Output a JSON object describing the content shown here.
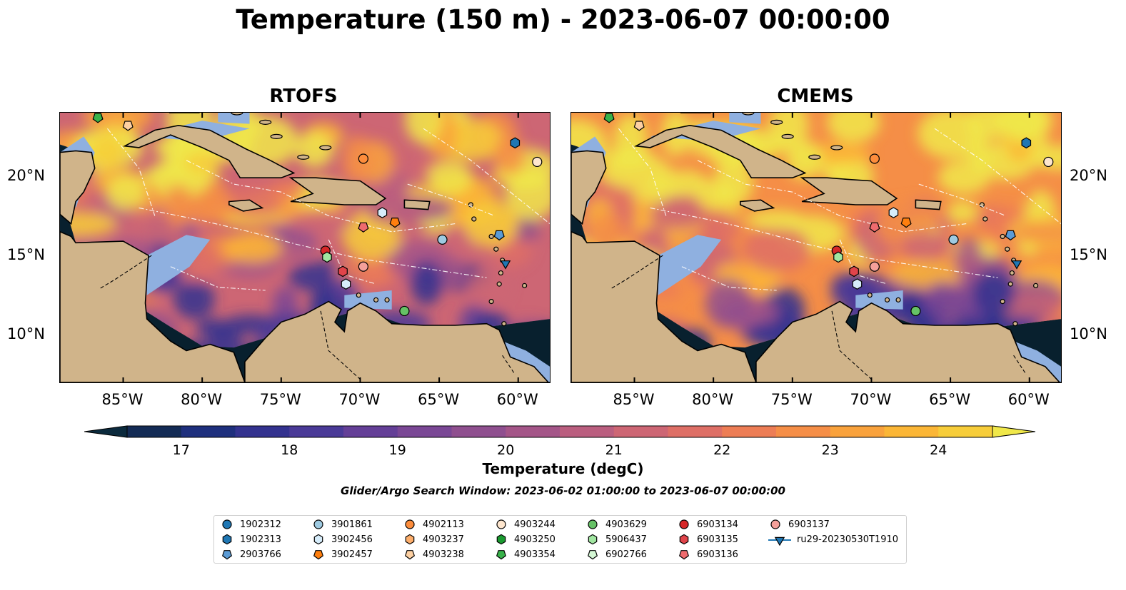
{
  "title": "Temperature (150 m) - 2023-06-07 00:00:00",
  "panels": [
    {
      "name": "RTOFS"
    },
    {
      "name": "CMEMS"
    }
  ],
  "axes": {
    "lon_ticks": [
      "85°W",
      "80°W",
      "75°W",
      "70°W",
      "65°W",
      "60°W"
    ],
    "lat_ticks": [
      "20°N",
      "15°N",
      "10°N"
    ],
    "lon_range": [
      -89,
      -58
    ],
    "lat_range": [
      7,
      24
    ]
  },
  "colorbar": {
    "label": "Temperature (degC)",
    "ticks": [
      "17",
      "18",
      "19",
      "20",
      "21",
      "22",
      "23",
      "24"
    ],
    "range": [
      16.5,
      24.5
    ],
    "colors": [
      "#0b2a3d",
      "#132b55",
      "#1e2f7d",
      "#33328f",
      "#4a3a97",
      "#643f97",
      "#7a4795",
      "#8f4f8f",
      "#a45588",
      "#ba5e7f",
      "#cd6674",
      "#de6f66",
      "#ed7d55",
      "#f58e47",
      "#f9a23c",
      "#fbb636",
      "#f7cd3a",
      "#f0e84a"
    ],
    "land_color": "#d0b48a",
    "shelf_color": "#8fb0e0",
    "deep_color": "#08202e"
  },
  "subtitle": "Glider/Argo Search Window: 2023-06-02 01:00:00 to 2023-06-07 00:00:00",
  "legend": [
    {
      "label": "1902312",
      "marker": "circle",
      "color": "#1f77b4"
    },
    {
      "label": "1902313",
      "marker": "hexagon",
      "color": "#1f77b4"
    },
    {
      "label": "2903766",
      "marker": "pentagon",
      "color": "#5b9bd5"
    },
    {
      "label": "3901861",
      "marker": "circle",
      "color": "#9ecae1"
    },
    {
      "label": "3902456",
      "marker": "hexagon",
      "color": "#d6ecfa"
    },
    {
      "label": "3902457",
      "marker": "pentagon",
      "color": "#ff7f0e"
    },
    {
      "label": "4902113",
      "marker": "circle",
      "color": "#fd8d3c"
    },
    {
      "label": "4903237",
      "marker": "hexagon",
      "color": "#fdae6b"
    },
    {
      "label": "4903238",
      "marker": "pentagon",
      "color": "#fdd0a2"
    },
    {
      "label": "4903244",
      "marker": "circle",
      "color": "#fee6ce"
    },
    {
      "label": "4903250",
      "marker": "hexagon",
      "color": "#1a9a30"
    },
    {
      "label": "4903354",
      "marker": "pentagon",
      "color": "#38b24a"
    },
    {
      "label": "4903629",
      "marker": "circle",
      "color": "#66c266"
    },
    {
      "label": "5906437",
      "marker": "hexagon",
      "color": "#a1e6a1"
    },
    {
      "label": "6902766",
      "marker": "pentagon",
      "color": "#d4f7d4"
    },
    {
      "label": "6903134",
      "marker": "circle",
      "color": "#d62728"
    },
    {
      "label": "6903135",
      "marker": "hexagon",
      "color": "#e0444a"
    },
    {
      "label": "6903136",
      "marker": "pentagon",
      "color": "#ee6b6e"
    },
    {
      "label": "6903137",
      "marker": "circle",
      "color": "#f4a09a"
    },
    {
      "label": "ru29-20230530T1910",
      "marker": "triangle-line",
      "color": "#1f77b4"
    }
  ],
  "floats": [
    {
      "label": "4903354",
      "lon": -86.6,
      "lat": 23.7
    },
    {
      "label": "4903238",
      "lon": -84.7,
      "lat": 23.2
    },
    {
      "label": "1902313",
      "lon": -60.2,
      "lat": 22.1
    },
    {
      "label": "4903244",
      "lon": -58.8,
      "lat": 20.9
    },
    {
      "label": "4902113",
      "lon": -69.8,
      "lat": 21.1
    },
    {
      "label": "3902456",
      "lon": -68.6,
      "lat": 17.7
    },
    {
      "label": "3902457",
      "lon": -67.8,
      "lat": 17.1
    },
    {
      "label": "6903136",
      "lon": -69.8,
      "lat": 16.8
    },
    {
      "label": "3901861",
      "lon": -64.8,
      "lat": 16.0
    },
    {
      "label": "2903766",
      "lon": -61.2,
      "lat": 16.3
    },
    {
      "label": "6903134",
      "lon": -72.2,
      "lat": 15.3
    },
    {
      "label": "5906437",
      "lon": -72.1,
      "lat": 14.9
    },
    {
      "label": "6903135",
      "lon": -71.1,
      "lat": 14.0
    },
    {
      "label": "6903137",
      "lon": -69.8,
      "lat": 14.3
    },
    {
      "label": "3902456",
      "lon": -70.9,
      "lat": 13.2
    },
    {
      "label": "ru29-20230530T1910",
      "lon": -60.8,
      "lat": 14.5
    },
    {
      "label": "4903629",
      "lon": -67.2,
      "lat": 11.5
    }
  ]
}
